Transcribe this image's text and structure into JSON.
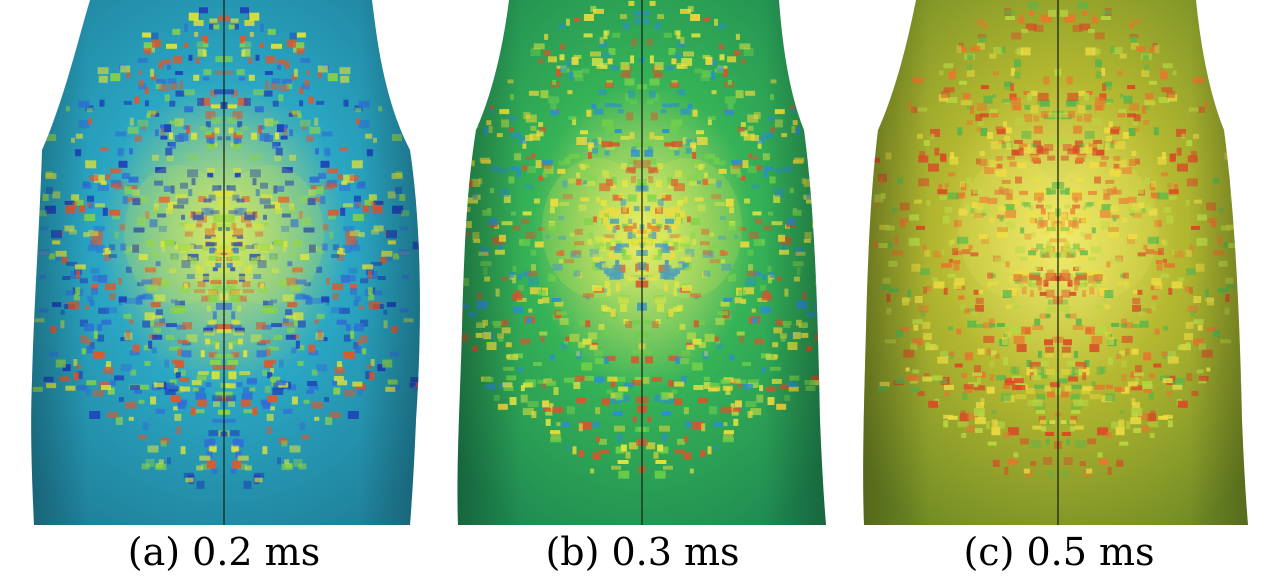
{
  "figure": {
    "panels": [
      {
        "caption": "(a) 0.2 ms",
        "palette": {
          "base": "#2aa7c4",
          "base_dark": "#1f7f98",
          "glow": "#d5e84a",
          "speckle": [
            "#1d3fb8",
            "#e0e33a",
            "#8ad34a",
            "#e0572c",
            "#2f6fd6"
          ]
        }
      },
      {
        "caption": "(b) 0.3 ms",
        "palette": {
          "base": "#36b357",
          "base_dark": "#1f8a52",
          "glow": "#e7ec55",
          "speckle": [
            "#e4e640",
            "#6fcf4b",
            "#d9552b",
            "#2a8fd0",
            "#f0d93a"
          ]
        }
      },
      {
        "caption": "(c) 0.5 ms",
        "palette": {
          "base": "#b5b930",
          "base_dark": "#6f8a25",
          "glow": "#f1e95a",
          "speckle": [
            "#e8762c",
            "#f0dc42",
            "#59b54a",
            "#d94a26",
            "#b9d743"
          ]
        }
      }
    ]
  }
}
